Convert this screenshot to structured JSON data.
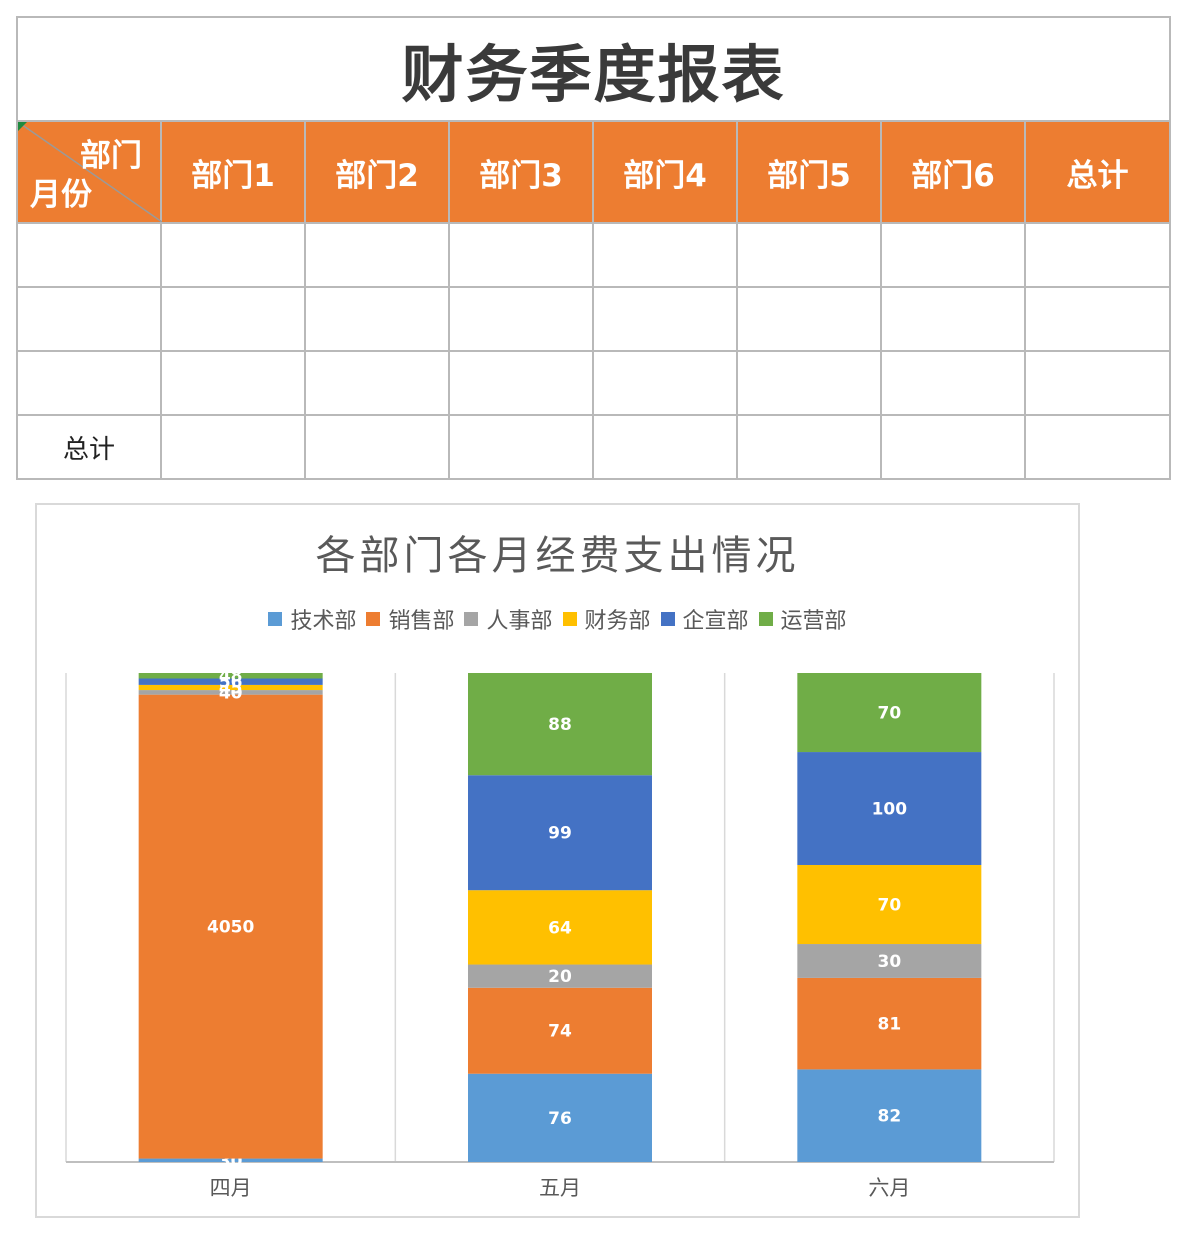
{
  "table": {
    "title": "财务季度报表",
    "corner_top": "部门",
    "corner_bottom": "月份",
    "headers": [
      "部门1",
      "部门2",
      "部门3",
      "部门4",
      "部门5",
      "部门6",
      "总计"
    ],
    "rows": [
      {
        "label": "",
        "cells": [
          "",
          "",
          "",
          "",
          "",
          "",
          ""
        ]
      },
      {
        "label": "",
        "cells": [
          "",
          "",
          "",
          "",
          "",
          "",
          ""
        ]
      },
      {
        "label": "",
        "cells": [
          "",
          "",
          "",
          "",
          "",
          "",
          ""
        ]
      },
      {
        "label": "总计",
        "cells": [
          "",
          "",
          "",
          "",
          "",
          "",
          ""
        ]
      }
    ],
    "colors": {
      "header_bg": "#ed7d31",
      "grid": "#b9b9b9"
    }
  },
  "chart_data": {
    "type": "bar",
    "stacked": true,
    "normalized": true,
    "title": "各部门各月经费支出情况",
    "categories": [
      "四月",
      "五月",
      "六月"
    ],
    "series": [
      {
        "name": "技术部",
        "color": "#5b9bd5",
        "values": [
          30,
          76,
          82
        ]
      },
      {
        "name": "销售部",
        "color": "#ed7d31",
        "values": [
          4050,
          74,
          81
        ]
      },
      {
        "name": "人事部",
        "color": "#a5a5a5",
        "values": [
          40,
          20,
          30
        ]
      },
      {
        "name": "财务部",
        "color": "#ffc000",
        "values": [
          45,
          64,
          70
        ]
      },
      {
        "name": "企宣部",
        "color": "#4472c4",
        "values": [
          56,
          99,
          100
        ]
      },
      {
        "name": "运营部",
        "color": "#70ad47",
        "values": [
          48,
          88,
          70
        ]
      }
    ],
    "legend_position": "top",
    "grid": false,
    "xlabel": "",
    "ylabel": ""
  }
}
